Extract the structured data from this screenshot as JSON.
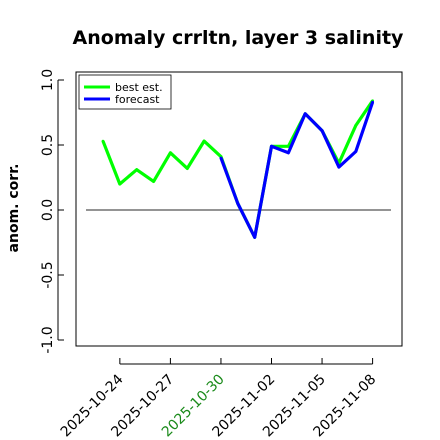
{
  "chart_data": {
    "type": "line",
    "title": "Anomaly crrltn, layer 3 salinity",
    "xlabel": "",
    "ylabel": "anom. corr.",
    "ylim": [
      -1.0,
      1.0
    ],
    "y_ticks": [
      {
        "value": 1.0,
        "label": "1.0"
      },
      {
        "value": 0.5,
        "label": "0.5"
      },
      {
        "value": 0.0,
        "label": "0.0"
      },
      {
        "value": -0.5,
        "label": "-0.5"
      },
      {
        "value": -1.0,
        "label": "-1.0"
      }
    ],
    "x_ticks": [
      {
        "label": "2025-10-24",
        "color": "#000000"
      },
      {
        "label": "2025-10-27",
        "color": "#000000"
      },
      {
        "label": "2025-10-30",
        "color": "#1a8a1a"
      },
      {
        "label": "2025-11-02",
        "color": "#000000"
      },
      {
        "label": "2025-11-05",
        "color": "#000000"
      },
      {
        "label": "2025-11-08",
        "color": "#000000"
      }
    ],
    "reference_line": 0.0,
    "grid": false,
    "legend_position": "top-left",
    "series": [
      {
        "name": "best est.",
        "color": "#00ff00",
        "x": [
          "2025-10-23",
          "2025-10-24",
          "2025-10-25",
          "2025-10-26",
          "2025-10-27",
          "2025-10-28",
          "2025-10-29",
          "2025-10-30",
          "2025-10-31",
          "2025-11-01",
          "2025-11-02",
          "2025-11-03",
          "2025-11-04",
          "2025-11-05",
          "2025-11-06",
          "2025-11-07",
          "2025-11-08"
        ],
        "values": [
          0.53,
          0.2,
          0.31,
          0.22,
          0.44,
          0.32,
          0.53,
          0.41,
          0.05,
          -0.21,
          0.49,
          0.49,
          0.74,
          0.61,
          0.36,
          0.65,
          0.84
        ]
      },
      {
        "name": "forecast",
        "color": "#0000ff",
        "x": [
          "2025-10-30",
          "2025-10-31",
          "2025-11-01",
          "2025-11-02",
          "2025-11-03",
          "2025-11-04",
          "2025-11-05",
          "2025-11-06",
          "2025-11-07",
          "2025-11-08"
        ],
        "values": [
          0.4,
          0.05,
          -0.21,
          0.49,
          0.44,
          0.74,
          0.61,
          0.33,
          0.45,
          0.83
        ]
      }
    ]
  }
}
